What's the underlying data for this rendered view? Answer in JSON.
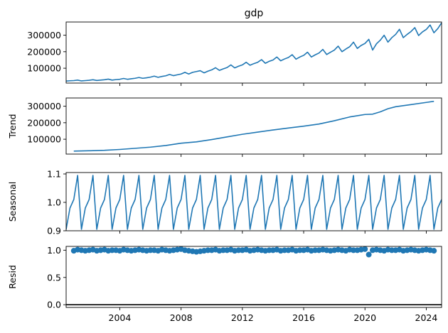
{
  "chart_data": [
    {
      "type": "line",
      "title": "gdp",
      "ylabel": "",
      "xlabel": "",
      "xlim": [
        2000.5,
        2025.0
      ],
      "ylim": [
        10000,
        380000
      ],
      "yticks": [
        100000,
        200000,
        300000
      ],
      "ytick_labels": [
        "100000",
        "200000",
        "300000"
      ],
      "series_color": "#1f77b4",
      "series": [
        {
          "x": [
            2000.5,
            2000.75,
            2001.0,
            2001.25,
            2001.5,
            2001.75,
            2002.0,
            2002.25,
            2002.5,
            2002.75,
            2003.0,
            2003.25,
            2003.5,
            2003.75,
            2004.0,
            2004.25,
            2004.5,
            2004.75,
            2005.0,
            2005.25,
            2005.5,
            2005.75,
            2006.0,
            2006.25,
            2006.5,
            2006.75,
            2007.0,
            2007.25,
            2007.5,
            2007.75,
            2008.0,
            2008.25,
            2008.5,
            2008.75,
            2009.0,
            2009.25,
            2009.5,
            2009.75,
            2010.0,
            2010.25,
            2010.5,
            2010.75,
            2011.0,
            2011.25,
            2011.5,
            2011.75,
            2012.0,
            2012.25,
            2012.5,
            2012.75,
            2013.0,
            2013.25,
            2013.5,
            2013.75,
            2014.0,
            2014.25,
            2014.5,
            2014.75,
            2015.0,
            2015.25,
            2015.5,
            2015.75,
            2016.0,
            2016.25,
            2016.5,
            2016.75,
            2017.0,
            2017.25,
            2017.5,
            2017.75,
            2018.0,
            2018.25,
            2018.5,
            2018.75,
            2019.0,
            2019.25,
            2019.5,
            2019.75,
            2020.0,
            2020.25,
            2020.5,
            2020.75,
            2021.0,
            2021.25,
            2021.5,
            2021.75,
            2022.0,
            2022.25,
            2022.5,
            2022.75,
            2023.0,
            2023.25,
            2023.5,
            2023.75,
            2024.0,
            2024.25,
            2024.5,
            2024.75,
            2025.0
          ],
          "values": [
            22000,
            24000,
            25000,
            28000,
            23000,
            25000,
            27000,
            30000,
            26000,
            28000,
            30000,
            34000,
            28000,
            31000,
            33000,
            38000,
            33000,
            36000,
            39000,
            44000,
            39000,
            42000,
            46000,
            52000,
            45000,
            50000,
            54000,
            62000,
            55000,
            60000,
            65000,
            75000,
            65000,
            75000,
            80000,
            85000,
            72000,
            82000,
            90000,
            103000,
            87000,
            96000,
            104000,
            120000,
            102000,
            112000,
            120000,
            136000,
            118000,
            128000,
            136000,
            152000,
            130000,
            142000,
            150000,
            168000,
            145000,
            156000,
            165000,
            182000,
            155000,
            168000,
            178000,
            197000,
            168000,
            181000,
            192000,
            214000,
            183000,
            197000,
            210000,
            234000,
            200000,
            216000,
            230000,
            258000,
            220000,
            238000,
            250000,
            275000,
            210000,
            248000,
            270000,
            300000,
            258000,
            285000,
            305000,
            336000,
            285000,
            305000,
            322000,
            346000,
            298000,
            320000,
            335000,
            362000,
            315000,
            340000,
            375000
          ]
        }
      ]
    },
    {
      "type": "line",
      "title": "",
      "ylabel": "Trend",
      "xlabel": "",
      "xlim": [
        2000.5,
        2025.0
      ],
      "ylim": [
        10000,
        350000
      ],
      "yticks": [
        100000,
        200000,
        300000
      ],
      "ytick_labels": [
        "100000",
        "200000",
        "300000"
      ],
      "series_color": "#1f77b4",
      "series": [
        {
          "x": [
            2001.0,
            2002.0,
            2003.0,
            2004.0,
            2005.0,
            2006.0,
            2007.0,
            2008.0,
            2009.0,
            2010.0,
            2011.0,
            2012.0,
            2013.0,
            2014.0,
            2015.0,
            2016.0,
            2017.0,
            2018.0,
            2019.0,
            2020.0,
            2020.5,
            2021.0,
            2021.5,
            2022.0,
            2023.0,
            2024.0,
            2024.5
          ],
          "values": [
            28000,
            30000,
            33000,
            38000,
            45000,
            52000,
            62000,
            76000,
            84000,
            98000,
            114000,
            130000,
            143000,
            156000,
            168000,
            179000,
            192000,
            212000,
            235000,
            250000,
            252000,
            266000,
            285000,
            297000,
            310000,
            323000,
            330000
          ]
        }
      ]
    },
    {
      "type": "line",
      "title": "",
      "ylabel": "Seasonal",
      "xlabel": "",
      "xlim": [
        2000.5,
        2025.0
      ],
      "ylim": [
        0.9,
        1.105
      ],
      "yticks": [
        0.9,
        1.0,
        1.1
      ],
      "ytick_labels": [
        "0.9",
        "1.0",
        "1.1"
      ],
      "series_color": "#1f77b4",
      "pattern": [
        1.0,
        1.02,
        1.095,
        0.905
      ],
      "series": [
        {
          "x_start": 2000.5,
          "x_step": 0.25,
          "values": [
            0.905,
            0.98,
            1.01,
            1.095
          ]
        }
      ]
    },
    {
      "type": "scatter",
      "title": "",
      "ylabel": "Resid",
      "xlabel": "",
      "xlim": [
        2000.5,
        2025.0
      ],
      "ylim": [
        -0.05,
        1.07
      ],
      "yticks": [
        0.0,
        0.5,
        1.0
      ],
      "ytick_labels": [
        "0.0",
        "0.5",
        "1.0"
      ],
      "xticks": [
        2004,
        2008,
        2012,
        2016,
        2020,
        2024
      ],
      "xtick_labels": [
        "2004",
        "2008",
        "2012",
        "2016",
        "2020",
        "2024"
      ],
      "series_color": "#1f77b4",
      "baseline": 0.0,
      "series": [
        {
          "x": [
            2001.0,
            2001.25,
            2001.5,
            2001.75,
            2002.0,
            2002.25,
            2002.5,
            2002.75,
            2003.0,
            2003.25,
            2003.5,
            2003.75,
            2004.0,
            2004.25,
            2004.5,
            2004.75,
            2005.0,
            2005.25,
            2005.5,
            2005.75,
            2006.0,
            2006.25,
            2006.5,
            2006.75,
            2007.0,
            2007.25,
            2007.5,
            2007.75,
            2008.0,
            2008.25,
            2008.5,
            2008.75,
            2009.0,
            2009.25,
            2009.5,
            2009.75,
            2010.0,
            2010.25,
            2010.5,
            2010.75,
            2011.0,
            2011.25,
            2011.5,
            2011.75,
            2012.0,
            2012.25,
            2012.5,
            2012.75,
            2013.0,
            2013.25,
            2013.5,
            2013.75,
            2014.0,
            2014.25,
            2014.5,
            2014.75,
            2015.0,
            2015.25,
            2015.5,
            2015.75,
            2016.0,
            2016.25,
            2016.5,
            2016.75,
            2017.0,
            2017.25,
            2017.5,
            2017.75,
            2018.0,
            2018.25,
            2018.5,
            2018.75,
            2019.0,
            2019.25,
            2019.5,
            2019.75,
            2020.0,
            2020.25,
            2020.5,
            2020.75,
            2021.0,
            2021.25,
            2021.5,
            2021.75,
            2022.0,
            2022.25,
            2022.5,
            2022.75,
            2023.0,
            2023.25,
            2023.5,
            2023.75,
            2024.0,
            2024.25,
            2024.5
          ],
          "values": [
            0.99,
            1.01,
            1.0,
            0.99,
            1.0,
            1.01,
            0.99,
            1.0,
            1.01,
            0.99,
            1.0,
            1.0,
            0.99,
            1.01,
            1.0,
            0.99,
            1.0,
            1.01,
            1.0,
            0.99,
            1.0,
            1.0,
            0.99,
            1.01,
            1.0,
            0.99,
            1.0,
            1.01,
            1.02,
            1.0,
            0.99,
            0.98,
            0.97,
            0.98,
            0.99,
            1.0,
            1.0,
            1.01,
            0.99,
            1.0,
            1.0,
            1.01,
            0.99,
            1.0,
            1.0,
            1.01,
            0.99,
            1.0,
            1.01,
            1.0,
            0.99,
            1.0,
            1.0,
            1.01,
            0.99,
            1.0,
            1.0,
            1.01,
            0.99,
            1.0,
            1.0,
            1.01,
            0.99,
            1.0,
            1.0,
            1.01,
            1.0,
            0.99,
            1.0,
            1.01,
            1.0,
            0.99,
            1.01,
            1.0,
            1.0,
            1.01,
            1.02,
            0.92,
            1.0,
            1.01,
            1.0,
            0.99,
            1.01,
            1.0,
            1.0,
            1.01,
            0.99,
            1.0,
            1.01,
            1.0,
            0.99,
            1.0,
            1.01,
            1.0,
            0.99
          ]
        }
      ]
    }
  ]
}
